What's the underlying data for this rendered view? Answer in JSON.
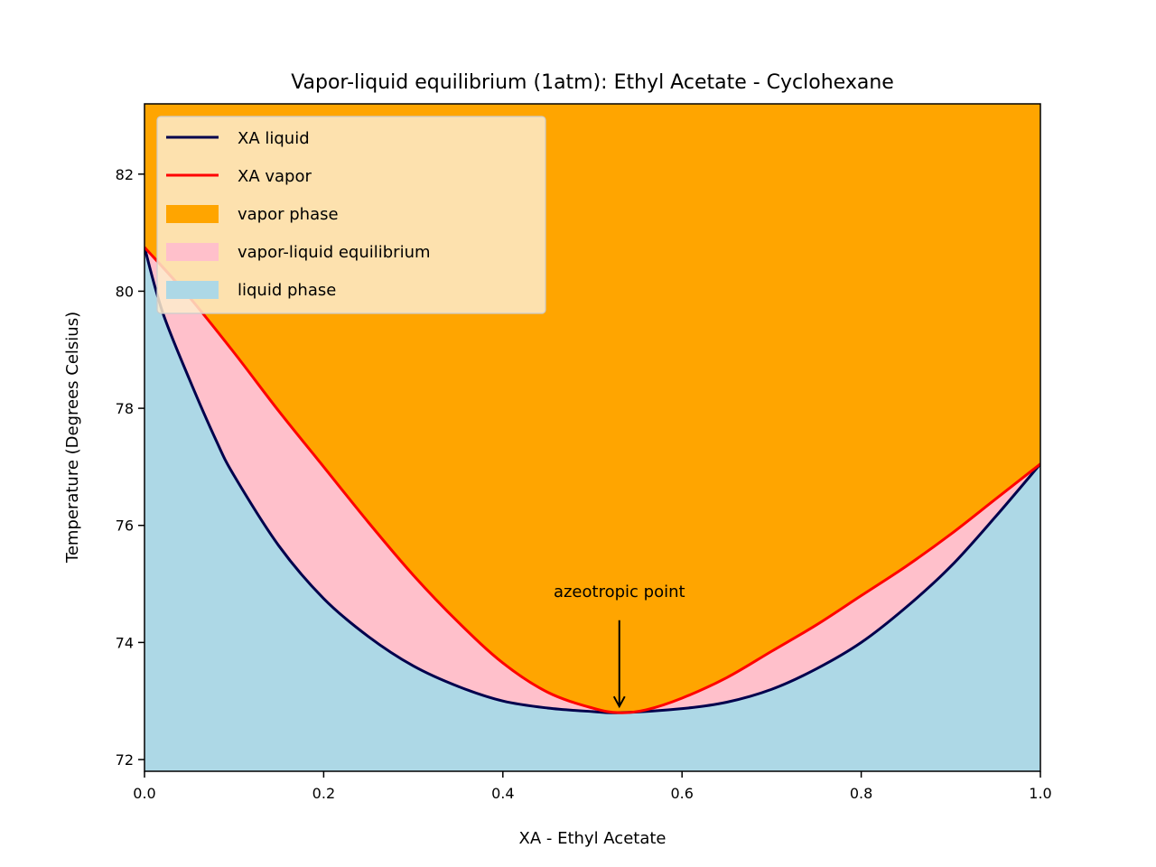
{
  "chart_data": {
    "type": "area",
    "title": "Vapor-liquid equilibrium (1atm): Ethyl Acetate - Cyclohexane",
    "xlabel": "XA - Ethyl Acetate",
    "ylabel": "Temperature (Degrees Celsius)",
    "xlim": [
      0.0,
      1.0
    ],
    "ylim": [
      71.8,
      83.2
    ],
    "x_ticks": [
      "0.0",
      "0.2",
      "0.4",
      "0.6",
      "0.8",
      "1.0"
    ],
    "y_ticks": [
      "72",
      "74",
      "76",
      "78",
      "80",
      "82"
    ],
    "grid": false,
    "legend_position": "top-left",
    "series": [
      {
        "name": "XA liquid",
        "kind": "line",
        "color": "#00004d",
        "x": [
          0.0,
          0.02,
          0.05,
          0.08,
          0.1,
          0.15,
          0.2,
          0.25,
          0.3,
          0.35,
          0.4,
          0.45,
          0.5,
          0.53,
          0.6,
          0.65,
          0.7,
          0.75,
          0.8,
          0.85,
          0.9,
          0.95,
          1.0
        ],
        "y": [
          80.75,
          79.65,
          78.5,
          77.45,
          76.85,
          75.65,
          74.75,
          74.1,
          73.6,
          73.25,
          73.0,
          72.88,
          72.82,
          72.8,
          72.87,
          72.98,
          73.2,
          73.55,
          74.0,
          74.6,
          75.3,
          76.15,
          77.05
        ]
      },
      {
        "name": "XA vapor",
        "kind": "line",
        "color": "#ff0000",
        "x": [
          0.0,
          0.05,
          0.1,
          0.15,
          0.2,
          0.25,
          0.3,
          0.35,
          0.4,
          0.45,
          0.5,
          0.53,
          0.56,
          0.6,
          0.65,
          0.7,
          0.75,
          0.8,
          0.85,
          0.9,
          0.95,
          1.0
        ],
        "y": [
          80.75,
          79.9,
          78.95,
          77.95,
          77.0,
          76.05,
          75.15,
          74.35,
          73.65,
          73.15,
          72.88,
          72.8,
          72.85,
          73.05,
          73.4,
          73.85,
          74.3,
          74.8,
          75.3,
          75.85,
          76.45,
          77.05
        ]
      }
    ],
    "regions": [
      {
        "name": "vapor phase",
        "color": "#ffa500"
      },
      {
        "name": "vapor-liquid equilibrium",
        "color": "#ffc0cb"
      },
      {
        "name": "liquid phase",
        "color": "#add8e6"
      }
    ],
    "legend_bg": "#fdebcd",
    "annotation": {
      "text": "azeotropic point",
      "x": 0.53,
      "y": 72.8,
      "text_x": 0.53,
      "text_y": 74.75
    }
  }
}
